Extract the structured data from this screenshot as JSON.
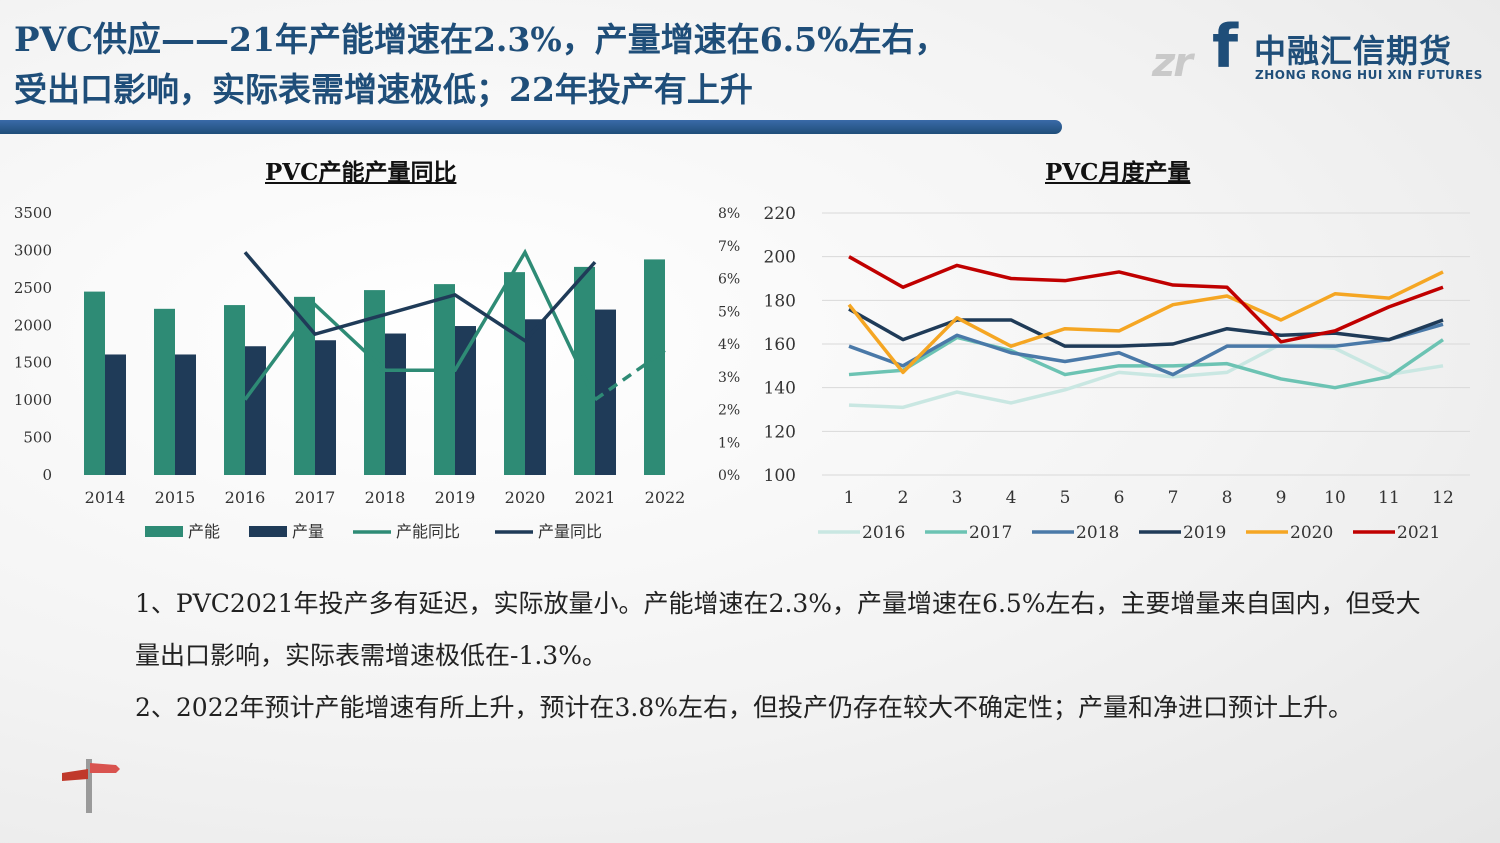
{
  "title": {
    "main": "PVC供应——",
    "sub": "21年产能增速在2.3%，产量增速在6.5%左右，",
    "line2": "受出口影响，实际表需增速极低；22年投产有上升"
  },
  "logo": {
    "mark": "zr",
    "letter": "f",
    "name_cn": "中融汇信期货",
    "name_en": "ZHONG RONG HUI XIN FUTURES"
  },
  "colors": {
    "brand": "#1f4e79",
    "capacity_bar": "#2e8b75",
    "production_bar": "#1f3b58"
  },
  "chart_data": [
    {
      "type": "bar",
      "title": "PVC产能产量同比",
      "categories": [
        "2014",
        "2015",
        "2016",
        "2017",
        "2018",
        "2019",
        "2020",
        "2021",
        "2022"
      ],
      "ylim": [
        0,
        3500
      ],
      "yticks": [
        "0",
        "500",
        "1000",
        "1500",
        "2000",
        "2500",
        "3000",
        "3500"
      ],
      "y2lim": [
        0,
        8
      ],
      "y2ticks": [
        "0%",
        "1%",
        "2%",
        "3%",
        "4%",
        "5%",
        "6%",
        "7%",
        "8%"
      ],
      "series": [
        {
          "name": "产能",
          "kind": "bar",
          "color": "#2e8b75",
          "values": [
            2450,
            2220,
            2270,
            2380,
            2470,
            2550,
            2710,
            2780,
            2880
          ]
        },
        {
          "name": "产量",
          "kind": "bar",
          "color": "#1f3b58",
          "values": [
            1610,
            1610,
            1720,
            1800,
            1890,
            1990,
            2080,
            2210,
            null
          ]
        },
        {
          "name": "产能同比",
          "kind": "line",
          "axis": "right",
          "color": "#2e8b75",
          "values": [
            null,
            null,
            2.3,
            5.2,
            3.2,
            3.2,
            6.8,
            2.3,
            3.8
          ],
          "dashed_from_index": 7
        },
        {
          "name": "产量同比",
          "kind": "line",
          "axis": "right",
          "color": "#1f3b58",
          "values": [
            null,
            null,
            6.8,
            4.3,
            4.9,
            5.5,
            4.1,
            6.5,
            null
          ]
        }
      ],
      "legend": [
        "产能",
        "产量",
        "产能同比",
        "产量同比"
      ]
    },
    {
      "type": "line",
      "title": "PVC月度产量",
      "categories": [
        "1",
        "2",
        "3",
        "4",
        "5",
        "6",
        "7",
        "8",
        "9",
        "10",
        "11",
        "12"
      ],
      "ylim": [
        100,
        220
      ],
      "yticks": [
        "100",
        "120",
        "140",
        "160",
        "180",
        "200",
        "220"
      ],
      "series": [
        {
          "name": "2016",
          "color": "#c9e7e2",
          "values": [
            132,
            131,
            138,
            133,
            139,
            147,
            145,
            147,
            160,
            158,
            146,
            150
          ]
        },
        {
          "name": "2017",
          "color": "#6cc3b3",
          "values": [
            146,
            148,
            163,
            157,
            146,
            150,
            150,
            151,
            144,
            140,
            145,
            162
          ]
        },
        {
          "name": "2018",
          "color": "#4a79a8",
          "values": [
            159,
            150,
            164,
            156,
            152,
            156,
            146,
            159,
            159,
            159,
            162,
            169
          ]
        },
        {
          "name": "2019",
          "color": "#1f3b58",
          "values": [
            176,
            162,
            171,
            171,
            159,
            159,
            160,
            167,
            164,
            165,
            162,
            171
          ]
        },
        {
          "name": "2020",
          "color": "#f5a623",
          "values": [
            178,
            147,
            172,
            159,
            167,
            166,
            178,
            182,
            171,
            183,
            181,
            193
          ]
        },
        {
          "name": "2021",
          "color": "#c00000",
          "values": [
            200,
            186,
            196,
            190,
            189,
            193,
            187,
            186,
            161,
            166,
            177,
            186
          ]
        }
      ],
      "legend": [
        "2016",
        "2017",
        "2018",
        "2019",
        "2020",
        "2021"
      ]
    }
  ],
  "body": {
    "p1": "1、PVC2021年投产多有延迟，实际放量小。产能增速在2.3%，产量增速在6.5%左右，主要增量来自国内，但受大量出口影响，实际表需增速极低在-1.3%。",
    "p2": "2、2022年预计产能增速有所上升，预计在3.8%左右，但投产仍存在较大不确定性；产量和净进口预计上升。"
  }
}
